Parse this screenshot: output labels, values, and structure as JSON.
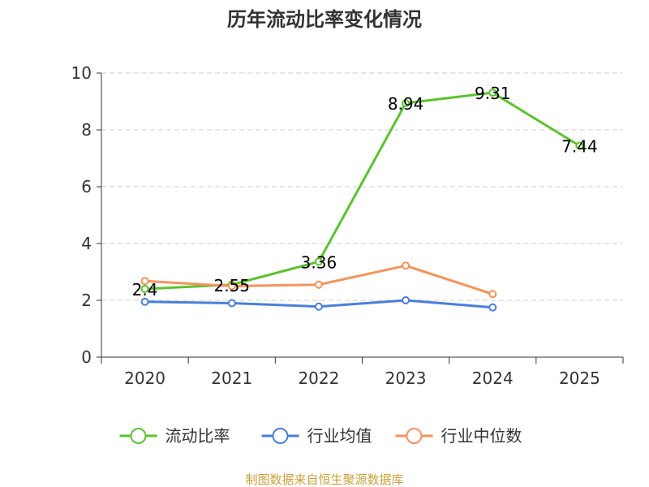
{
  "source": "制图数据来自恒生聚源数据库",
  "colors": {
    "current_ratio": "#5cc22f",
    "industry_avg": "#4a7fd8",
    "industry_median": "#f5935d",
    "grid": "#cccccc",
    "axis": "#333333",
    "source": "#c8a13a"
  },
  "chart_data": {
    "type": "line",
    "title": "历年流动比率变化情况",
    "xlabel": "",
    "ylabel": "",
    "categories": [
      "2020",
      "2021",
      "2022",
      "2023",
      "2024",
      "2025"
    ],
    "ylim": [
      0,
      10
    ],
    "yticks": [
      0,
      2,
      4,
      6,
      8,
      10
    ],
    "grid": true,
    "legend_position": "bottom",
    "series": [
      {
        "name": "流动比率",
        "color": "#5cc22f",
        "values": [
          2.4,
          2.55,
          3.36,
          8.94,
          9.31,
          7.44
        ],
        "labels": [
          "2.4",
          "2.55",
          "3.36",
          "8.94",
          "9.31",
          "7.44"
        ]
      },
      {
        "name": "行业均值",
        "color": "#4a7fd8",
        "values": [
          1.95,
          1.9,
          1.78,
          2.0,
          1.75,
          null
        ],
        "labels": []
      },
      {
        "name": "行业中位数",
        "color": "#f5935d",
        "values": [
          2.68,
          2.5,
          2.55,
          3.22,
          2.22,
          null
        ],
        "labels": []
      }
    ]
  }
}
